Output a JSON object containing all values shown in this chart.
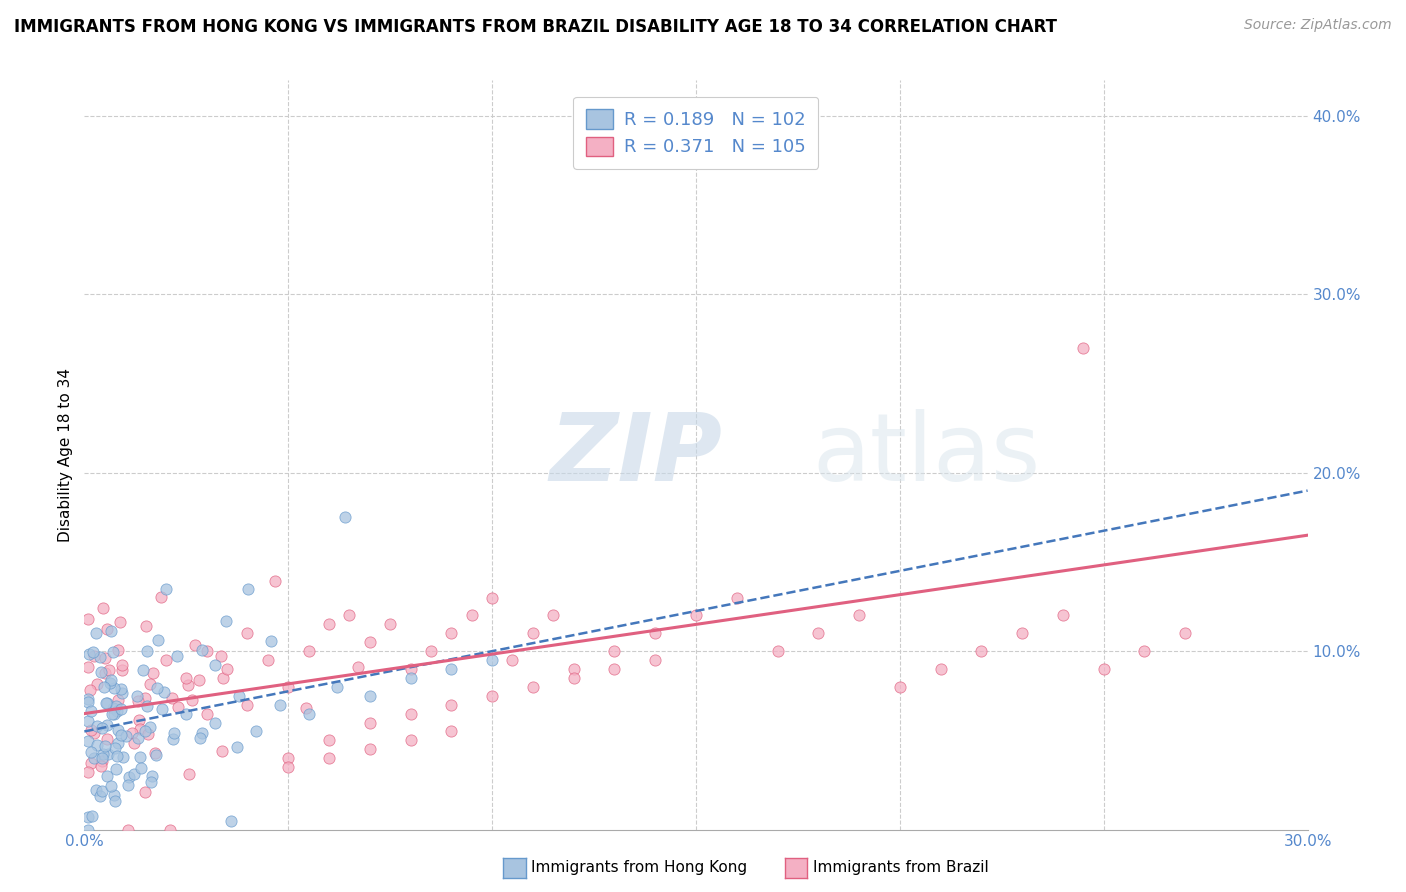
{
  "title": "IMMIGRANTS FROM HONG KONG VS IMMIGRANTS FROM BRAZIL DISABILITY AGE 18 TO 34 CORRELATION CHART",
  "source": "Source: ZipAtlas.com",
  "ylabel": "Disability Age 18 to 34",
  "xlim": [
    0.0,
    0.3
  ],
  "ylim": [
    0.0,
    0.42
  ],
  "hk_color": "#a8c4e0",
  "hk_edge_color": "#6699cc",
  "hk_line_color": "#4477bb",
  "brazil_color": "#f4b0c4",
  "brazil_edge_color": "#e06080",
  "brazil_line_color": "#e06080",
  "hk_R": 0.189,
  "hk_N": 102,
  "brazil_R": 0.371,
  "brazil_N": 105,
  "watermark_zip": "ZIP",
  "watermark_atlas": "atlas",
  "legend_label_hk": "Immigrants from Hong Kong",
  "legend_label_brazil": "Immigrants from Brazil",
  "background_color": "#ffffff",
  "grid_color": "#cccccc",
  "tick_color": "#5588cc",
  "hk_trend_x0": 0.0,
  "hk_trend_y0": 0.055,
  "hk_trend_x1": 0.3,
  "hk_trend_y1": 0.19,
  "brazil_trend_x0": 0.0,
  "brazil_trend_y0": 0.065,
  "brazil_trend_x1": 0.3,
  "brazil_trend_y1": 0.165
}
